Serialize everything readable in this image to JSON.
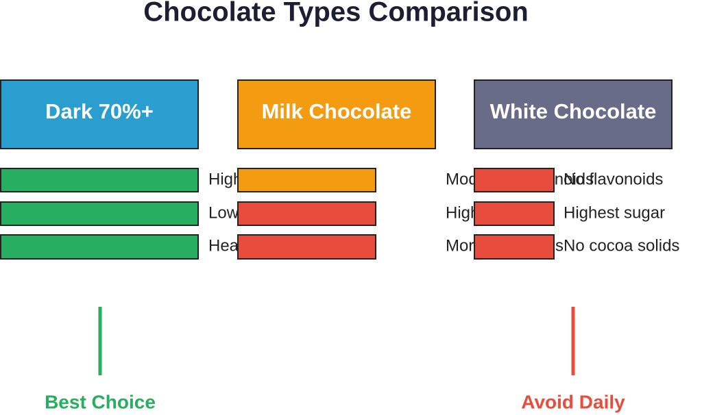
{
  "title": "Chocolate Types Comparison",
  "columns": [
    {
      "header": "Dark 70%+",
      "items": [
        "High flavonoids",
        "Low sugar",
        "Heart healthy"
      ]
    },
    {
      "header": "Milk Chocolate",
      "items": [
        "Moderate flavonoids",
        "Higher sugar",
        "More milk solids"
      ]
    },
    {
      "header": "White Chocolate",
      "items": [
        "No flavonoids",
        "Highest sugar",
        "No cocoa solids"
      ]
    }
  ],
  "footer": {
    "left": "Best Choice",
    "right": "Avoid Daily"
  }
}
